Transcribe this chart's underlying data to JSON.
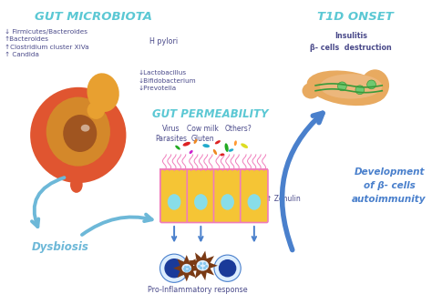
{
  "bg_color": "#ffffff",
  "title_gut": "GUT MICROBIOTA",
  "title_t1d": "T1D ONSET",
  "title_gut_perm": "GUT PERMEABILITY",
  "title_color": "#5bc8d4",
  "label_dysbiosis": "Dysbiosis",
  "label_dev": "Development\nof β- cells\nautoimmunity",
  "label_proinflam": "Pro-Inflammatory response",
  "label_zonulin": "↑ Zonulin",
  "label_hpylori": "H pylori",
  "label_virus": "Virus\nParasites",
  "label_cowmilk": "Cow milk\nGluten",
  "label_others": "Others?",
  "label_insulitis": "Insulitis\nβ- cells  destruction",
  "gut_microbiota_items": "↓ Firmicutes/Bacteroides\n↑Bacteroides\n↑Clostridium cluster XIVa\n↑ Candida",
  "gut_microbiota_items2": "↓Lactobacillus\n↓Bifidobacterium\n↓Prevotella",
  "text_color_dark": "#4a4a8a",
  "text_color_mid": "#5b7abf",
  "arrow_color_light": "#6db8d8",
  "arrow_color_dark": "#4a80cc",
  "colon_color_outer": "#e05530",
  "colon_color_inner": "#d4882a",
  "colon_center_dark": "#a05520",
  "gut_perm_cell_color": "#f5c535",
  "gut_perm_border": "#f07cbb",
  "gut_perm_nucleus": "#88dde8",
  "pancreas_color": "#e8aa60",
  "pancreas_inner": "#f0c090",
  "pancreas_border": "#d09050",
  "immune_cell_color": "#7a3a15",
  "immune_nucleus_blue": "#1a3a99",
  "immune_nucleus_light": "#ddeeff",
  "immune_spots": "#88c8f0",
  "green_duct": "#3a9a3a"
}
